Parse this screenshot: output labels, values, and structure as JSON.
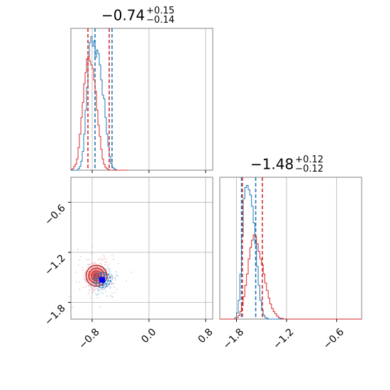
{
  "chart_data": [
    {
      "panel": "top-left",
      "type": "histogram",
      "title": {
        "median": "−0.74",
        "plus": "+0.15",
        "minus": "−0.14"
      },
      "xlim": [
        -1.1,
        0.9
      ],
      "x_grid": [
        -0.8,
        0.0,
        0.8
      ],
      "series": [
        {
          "name": "",
          "color": "#1f77b4",
          "quantiles": [
            -0.76,
            -0.52
          ],
          "bins": {
            "start": -1.1,
            "width": 0.02,
            "counts": [
              0,
              0,
              0,
              0,
              0,
              2,
              5,
              12,
              25,
              48,
              80,
              110,
              152,
              170,
              178,
              165,
              172,
              150,
              160,
              155,
              140,
              120,
              100,
              95,
              70,
              48,
              32,
              18,
              9,
              4,
              2,
              1,
              0,
              0,
              0,
              0,
              0,
              0,
              0,
              0
            ]
          }
        },
        {
          "name": "",
          "color": "#d62728",
          "quantiles": [
            -0.86,
            -0.56
          ],
          "bins": {
            "start": -1.1,
            "width": 0.02,
            "counts": [
              1,
              2,
              5,
              8,
              15,
              30,
              48,
              70,
              90,
              115,
              130,
              148,
              152,
              145,
              140,
              135,
              120,
              105,
              80,
              60,
              45,
              28,
              15,
              8,
              4,
              2,
              1,
              0,
              0,
              0,
              0,
              0,
              0,
              0,
              0,
              0,
              0,
              0,
              0,
              0
            ]
          }
        }
      ]
    },
    {
      "panel": "bottom-left",
      "type": "scatter-contour",
      "xlim": [
        -1.1,
        0.9
      ],
      "ylim": [
        -2.0,
        -0.3
      ],
      "x_ticks": [
        "−0.8",
        "0.0",
        "0.8"
      ],
      "x_tick_values": [
        -0.8,
        0.0,
        0.8
      ],
      "y_ticks": [
        "−0.6",
        "−1.2",
        "−1.8"
      ],
      "y_tick_values": [
        -0.6,
        -1.2,
        -1.8
      ],
      "series": [
        {
          "name": "",
          "color": "#d62728",
          "center": [
            -0.74,
            -1.48
          ],
          "spread": [
            0.14,
            0.12
          ]
        },
        {
          "name": "",
          "color": "#1f77b4",
          "center": [
            -0.66,
            -1.53
          ],
          "spread": [
            0.12,
            0.09
          ]
        }
      ],
      "marker": {
        "x": -0.66,
        "y": -1.53,
        "color": "#0000ff"
      }
    },
    {
      "panel": "bottom-right",
      "type": "histogram",
      "title": {
        "median": "−1.48",
        "plus": "+0.12",
        "minus": "−0.12"
      },
      "xlim": [
        -2.0,
        -0.3
      ],
      "x_ticks": [
        "−1.8",
        "−1.2",
        "−0.6"
      ],
      "x_tick_values": [
        -1.8,
        -1.2,
        -0.6
      ],
      "series": [
        {
          "name": "",
          "color": "#1f77b4",
          "quantiles": [
            -1.74,
            -1.57
          ],
          "bins": {
            "start": -2.0,
            "width": 0.02,
            "counts": [
              0,
              0,
              0,
              0,
              0,
              0,
              0,
              0,
              0,
              2,
              8,
              25,
              60,
              110,
              160,
              175,
              178,
              172,
              165,
              150,
              128,
              100,
              70,
              45,
              25,
              12,
              5,
              2,
              1,
              0,
              0,
              0,
              0,
              0,
              0,
              0,
              0,
              0,
              0,
              0,
              0,
              0,
              0,
              0,
              0,
              0,
              0,
              0,
              0,
              0,
              0,
              0,
              0,
              0,
              0,
              0,
              0,
              0,
              0,
              0,
              0,
              0,
              0,
              0,
              0,
              0,
              0,
              0,
              0,
              0,
              0,
              0,
              0,
              0,
              0,
              0,
              0,
              0,
              0,
              0,
              0,
              0,
              0,
              0,
              0
            ]
          }
        },
        {
          "name": "",
          "color": "#d62728",
          "quantiles": [
            -1.73,
            -1.49
          ],
          "bins": {
            "start": -2.0,
            "width": 0.02,
            "counts": [
              0,
              0,
              0,
              0,
              0,
              0,
              0,
              0,
              0,
              0,
              2,
              5,
              10,
              18,
              30,
              45,
              60,
              80,
              95,
              105,
              112,
              110,
              100,
              90,
              80,
              72,
              60,
              48,
              38,
              28,
              20,
              14,
              10,
              7,
              4,
              2,
              1,
              1,
              0,
              0,
              0,
              0,
              0,
              0,
              0,
              0,
              0,
              0,
              0,
              0,
              0,
              0,
              0,
              0,
              0,
              0,
              0,
              0,
              0,
              0,
              0,
              0,
              0,
              0,
              0,
              0,
              0,
              0,
              0,
              0,
              0,
              0,
              0,
              0,
              0,
              0,
              0,
              0,
              0,
              0,
              0,
              0,
              0,
              0,
              0
            ]
          }
        }
      ]
    }
  ]
}
